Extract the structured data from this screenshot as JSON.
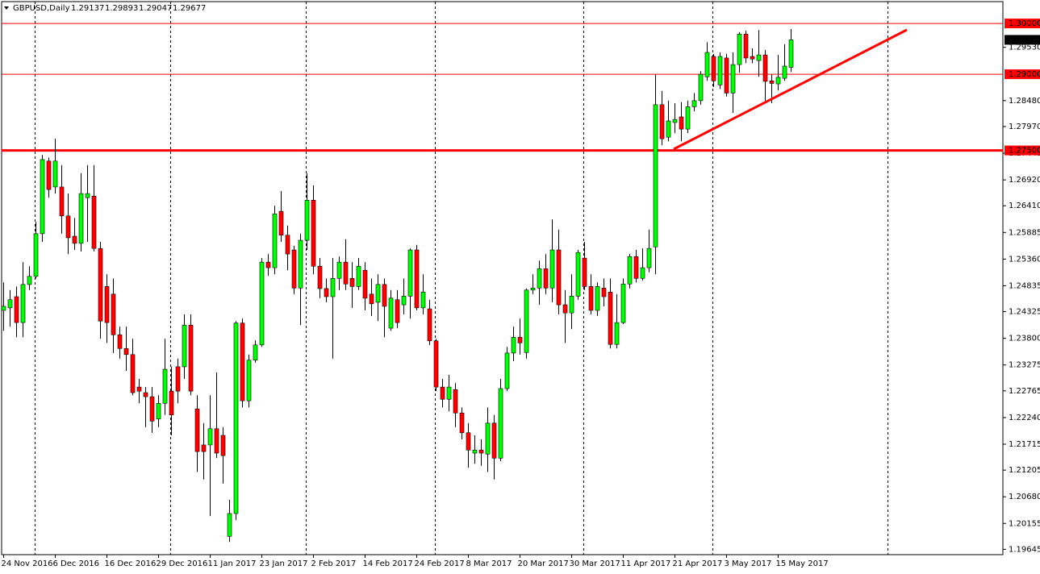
{
  "chart_data": {
    "type": "candlestick",
    "title": "GBPUSD,Daily",
    "up_color": "#00ff00",
    "down_color": "#ff0000",
    "wick_color": "#000000",
    "ylim": [
      1.1954,
      1.3043
    ],
    "yticks": [
      {
        "value": 1.2953,
        "label": "1.29530"
      },
      {
        "value": 1.2848,
        "label": "1.28480"
      },
      {
        "value": 1.2797,
        "label": "1.27970"
      },
      {
        "value": 1.27445,
        "label": "1.27445"
      },
      {
        "value": 1.2692,
        "label": "1.26920"
      },
      {
        "value": 1.2641,
        "label": "1.26410"
      },
      {
        "value": 1.25885,
        "label": "1.25885"
      },
      {
        "value": 1.2536,
        "label": "1.25360"
      },
      {
        "value": 1.24835,
        "label": "1.24835"
      },
      {
        "value": 1.24325,
        "label": "1.24325"
      },
      {
        "value": 1.238,
        "label": "1.23800"
      },
      {
        "value": 1.23275,
        "label": "1.23275"
      },
      {
        "value": 1.22765,
        "label": "1.22765"
      },
      {
        "value": 1.2224,
        "label": "1.22240"
      },
      {
        "value": 1.21715,
        "label": "1.21715"
      },
      {
        "value": 1.21205,
        "label": "1.21205"
      },
      {
        "value": 1.2068,
        "label": "1.20680"
      },
      {
        "value": 1.20155,
        "label": "1.20155"
      },
      {
        "value": 1.19645,
        "label": "1.19645"
      }
    ],
    "levels": [
      {
        "value": 1.3,
        "label": "1.30000",
        "width": 1
      },
      {
        "value": 1.29,
        "label": "1.29000",
        "width": 1
      },
      {
        "value": 1.275,
        "label": "1.27500",
        "width": 3
      }
    ],
    "categories": [
      "24 Nov 2016",
      null,
      null,
      null,
      null,
      null,
      null,
      null,
      "6 Dec 2016",
      null,
      null,
      null,
      null,
      null,
      null,
      null,
      "16 Dec 2016",
      null,
      null,
      null,
      null,
      null,
      null,
      null,
      "29 Dec 2016",
      null,
      null,
      null,
      null,
      null,
      null,
      null,
      "11 Jan 2017",
      null,
      null,
      null,
      null,
      null,
      null,
      null,
      "23 Jan 2017",
      null,
      null,
      null,
      null,
      null,
      null,
      null,
      "2 Feb 2017",
      null,
      null,
      null,
      null,
      null,
      null,
      null,
      "14 Feb 2017",
      null,
      null,
      null,
      null,
      null,
      null,
      null,
      "24 Feb 2017",
      null,
      null,
      null,
      null,
      null,
      null,
      null,
      "8 Mar 2017",
      null,
      null,
      null,
      null,
      null,
      null,
      null,
      "20 Mar 2017",
      null,
      null,
      null,
      null,
      null,
      null,
      null,
      "30 Mar 2017",
      null,
      null,
      null,
      null,
      null,
      null,
      null,
      "11 Apr 2017",
      null,
      null,
      null,
      null,
      null,
      null,
      null,
      "21 Apr 2017",
      null,
      null,
      null,
      null,
      null,
      null,
      null,
      "3 May 2017",
      null,
      null,
      null,
      null,
      null,
      null,
      null,
      "15 May 2017",
      null,
      null
    ],
    "open": [
      1.2435,
      1.244,
      1.2462,
      1.2411,
      1.2486,
      1.2502,
      1.2586,
      1.2729,
      1.2678,
      1.2678,
      1.2621,
      1.2581,
      1.2567,
      1.2657,
      1.266,
      1.2557,
      1.2482,
      1.2467,
      1.2387,
      1.236,
      1.2348,
      1.2284,
      1.2273,
      1.2265,
      1.2221,
      1.2252,
      1.2276,
      1.2324,
      1.2324,
      1.2406,
      1.2241,
      1.217,
      1.217,
      1.2202,
      1.2189,
      1.199,
      1.2035,
      1.241,
      1.2257,
      1.2337,
      1.2367,
      1.253,
      1.2519,
      1.263,
      1.2583,
      1.2554,
      1.2479,
      1.2573,
      1.2652,
      1.2522,
      1.2478,
      1.2462,
      1.2498,
      1.253,
      1.2498,
      1.2482,
      1.2514,
      1.2467,
      1.2451,
      1.2486,
      1.24,
      1.2456,
      1.2446,
      1.2463,
      1.2554,
      1.244,
      1.2438,
      1.2375,
      1.2284,
      1.226,
      1.2279,
      1.2233,
      1.2194,
      1.2154,
      1.216,
      1.2152,
      1.2213,
      1.2144,
      1.2281,
      1.2351,
      1.2382,
      1.2352,
      1.2475,
      1.2479,
      1.2517,
      1.2479,
      1.2554,
      1.2446,
      1.243,
      1.2463,
      1.2538,
      1.2482,
      1.2435,
      1.2479,
      1.2471,
      1.2368,
      1.2411,
      1.2487,
      1.2541,
      1.2498,
      1.2519,
      1.256,
      1.284,
      1.2776,
      1.2805,
      1.2816,
      1.2792,
      1.2836,
      1.2848,
      1.2895,
      1.2935,
      1.2879,
      1.2932,
      1.2863,
      1.2919,
      1.2979,
      1.2935,
      1.2927,
      1.2938,
      1.2887,
      1.2881,
      1.2892,
      1.29137
    ],
    "high": [
      1.249,
      1.2475,
      1.2482,
      1.253,
      1.2522,
      1.2609,
      1.2741,
      1.2736,
      1.2773,
      1.2721,
      1.2665,
      1.2617,
      1.2705,
      1.2721,
      1.2721,
      1.257,
      1.2506,
      1.2498,
      1.2403,
      1.2403,
      1.2379,
      1.23,
      1.2284,
      1.2284,
      1.2268,
      1.2379,
      1.2324,
      1.234,
      1.2427,
      1.2427,
      1.2268,
      1.2213,
      1.2268,
      1.2313,
      1.2205,
      1.2062,
      1.2414,
      1.2419,
      1.2348,
      1.2376,
      1.2538,
      1.2546,
      1.2641,
      1.267,
      1.2602,
      1.2562,
      1.2586,
      1.2705,
      1.2681,
      1.2538,
      1.2498,
      1.2538,
      1.2541,
      1.2575,
      1.253,
      1.2538,
      1.253,
      1.2498,
      1.2506,
      1.2498,
      1.2475,
      1.2475,
      1.2498,
      1.2557,
      1.2564,
      1.2506,
      1.2456,
      1.2379,
      1.23,
      1.2308,
      1.2292,
      1.2244,
      1.2213,
      1.2189,
      1.2181,
      1.2244,
      1.2229,
      1.23,
      1.2363,
      1.2403,
      1.2419,
      1.2478,
      1.2506,
      1.2533,
      1.2546,
      1.2614,
      1.2594,
      1.2475,
      1.2506,
      1.2554,
      1.257,
      1.2506,
      1.249,
      1.2498,
      1.2498,
      1.2467,
      1.2498,
      1.2546,
      1.2554,
      1.2557,
      1.2594,
      1.29,
      1.2867,
      1.2848,
      1.2843,
      1.2845,
      1.2848,
      1.2863,
      1.2906,
      1.2963,
      1.294,
      1.2943,
      1.294,
      1.2943,
      1.2983,
      1.2986,
      1.2951,
      1.2987,
      1.2948,
      1.29,
      1.2938,
      1.2959,
      1.29893
    ],
    "low": [
      1.2395,
      1.2403,
      1.2382,
      1.2382,
      1.2475,
      1.2498,
      1.257,
      1.2657,
      1.2665,
      1.2586,
      1.2546,
      1.2554,
      1.2551,
      1.257,
      1.2551,
      1.2379,
      1.2371,
      1.2351,
      1.234,
      1.2316,
      1.2268,
      1.2252,
      1.2205,
      1.2194,
      1.2205,
      1.2229,
      1.2189,
      1.2252,
      1.23,
      1.2268,
      1.2117,
      1.2102,
      1.203,
      1.2144,
      1.2094,
      1.1979,
      1.2022,
      1.2244,
      1.2244,
      1.2332,
      1.2363,
      1.2503,
      1.2506,
      1.257,
      1.2514,
      1.2467,
      1.2406,
      1.2554,
      1.2506,
      1.2459,
      1.2451,
      1.234,
      1.2475,
      1.2475,
      1.244,
      1.2475,
      1.2435,
      1.2424,
      1.2414,
      1.2382,
      1.2395,
      1.24,
      1.2427,
      1.2419,
      1.2435,
      1.2427,
      1.2367,
      1.2276,
      1.2244,
      1.2236,
      1.2205,
      1.2181,
      1.2125,
      1.2133,
      1.2129,
      1.2117,
      1.2102,
      1.2138,
      1.2276,
      1.2335,
      1.2348,
      1.234,
      1.2467,
      1.2446,
      1.2467,
      1.2451,
      1.2427,
      1.2371,
      1.2398,
      1.2456,
      1.2475,
      1.2427,
      1.2424,
      1.2443,
      1.236,
      1.236,
      1.2408,
      1.2478,
      1.249,
      1.2494,
      1.251,
      1.2506,
      1.276,
      1.2768,
      1.2784,
      1.2768,
      1.2784,
      1.2827,
      1.284,
      1.2887,
      1.2875,
      1.2871,
      1.2856,
      1.2824,
      1.2903,
      1.2922,
      1.2922,
      1.2895,
      1.2848,
      1.2843,
      1.2868,
      1.2887,
      1.29047
    ],
    "close": [
      1.2443,
      1.2456,
      1.2411,
      1.2486,
      1.2502,
      1.2586,
      1.2732,
      1.2673,
      1.2729,
      1.2621,
      1.2578,
      1.2567,
      1.2665,
      1.2665,
      1.2557,
      1.2414,
      1.2411,
      1.2387,
      1.236,
      1.2348,
      1.2273,
      1.2276,
      1.2265,
      1.2217,
      1.2252,
      1.2319,
      1.2229,
      1.2276,
      1.2406,
      1.2276,
      1.2157,
      1.2157,
      1.2202,
      1.2154,
      1.2149,
      1.2035,
      1.241,
      1.2257,
      1.2337,
      1.2367,
      1.253,
      1.2519,
      1.2625,
      1.2583,
      1.2546,
      1.2479,
      1.2573,
      1.2652,
      1.2522,
      1.2478,
      1.2462,
      1.2498,
      1.253,
      1.2487,
      1.2482,
      1.2522,
      1.2459,
      1.2448,
      1.2486,
      1.2443,
      1.2459,
      1.2411,
      1.2463,
      1.2554,
      1.244,
      1.2471,
      1.2375,
      1.2284,
      1.226,
      1.2284,
      1.2233,
      1.2194,
      1.216,
      1.216,
      1.2154,
      1.2213,
      1.2144,
      1.2281,
      1.2351,
      1.2382,
      1.2371,
      1.2475,
      1.2479,
      1.2517,
      1.2479,
      1.2554,
      1.2446,
      1.243,
      1.2463,
      1.2549,
      1.2482,
      1.2435,
      1.2482,
      1.2462,
      1.2368,
      1.2411,
      1.2487,
      1.2541,
      1.2498,
      1.2519,
      1.2557,
      1.284,
      1.2773,
      1.2808,
      1.2811,
      1.2792,
      1.2836,
      1.2848,
      1.29,
      1.2943,
      1.2887,
      1.2935,
      1.2863,
      1.2919,
      1.2979,
      1.2932,
      1.293,
      1.2938,
      1.2886,
      1.2882,
      1.2894,
      1.2916,
      1.29677
    ]
  }
}
